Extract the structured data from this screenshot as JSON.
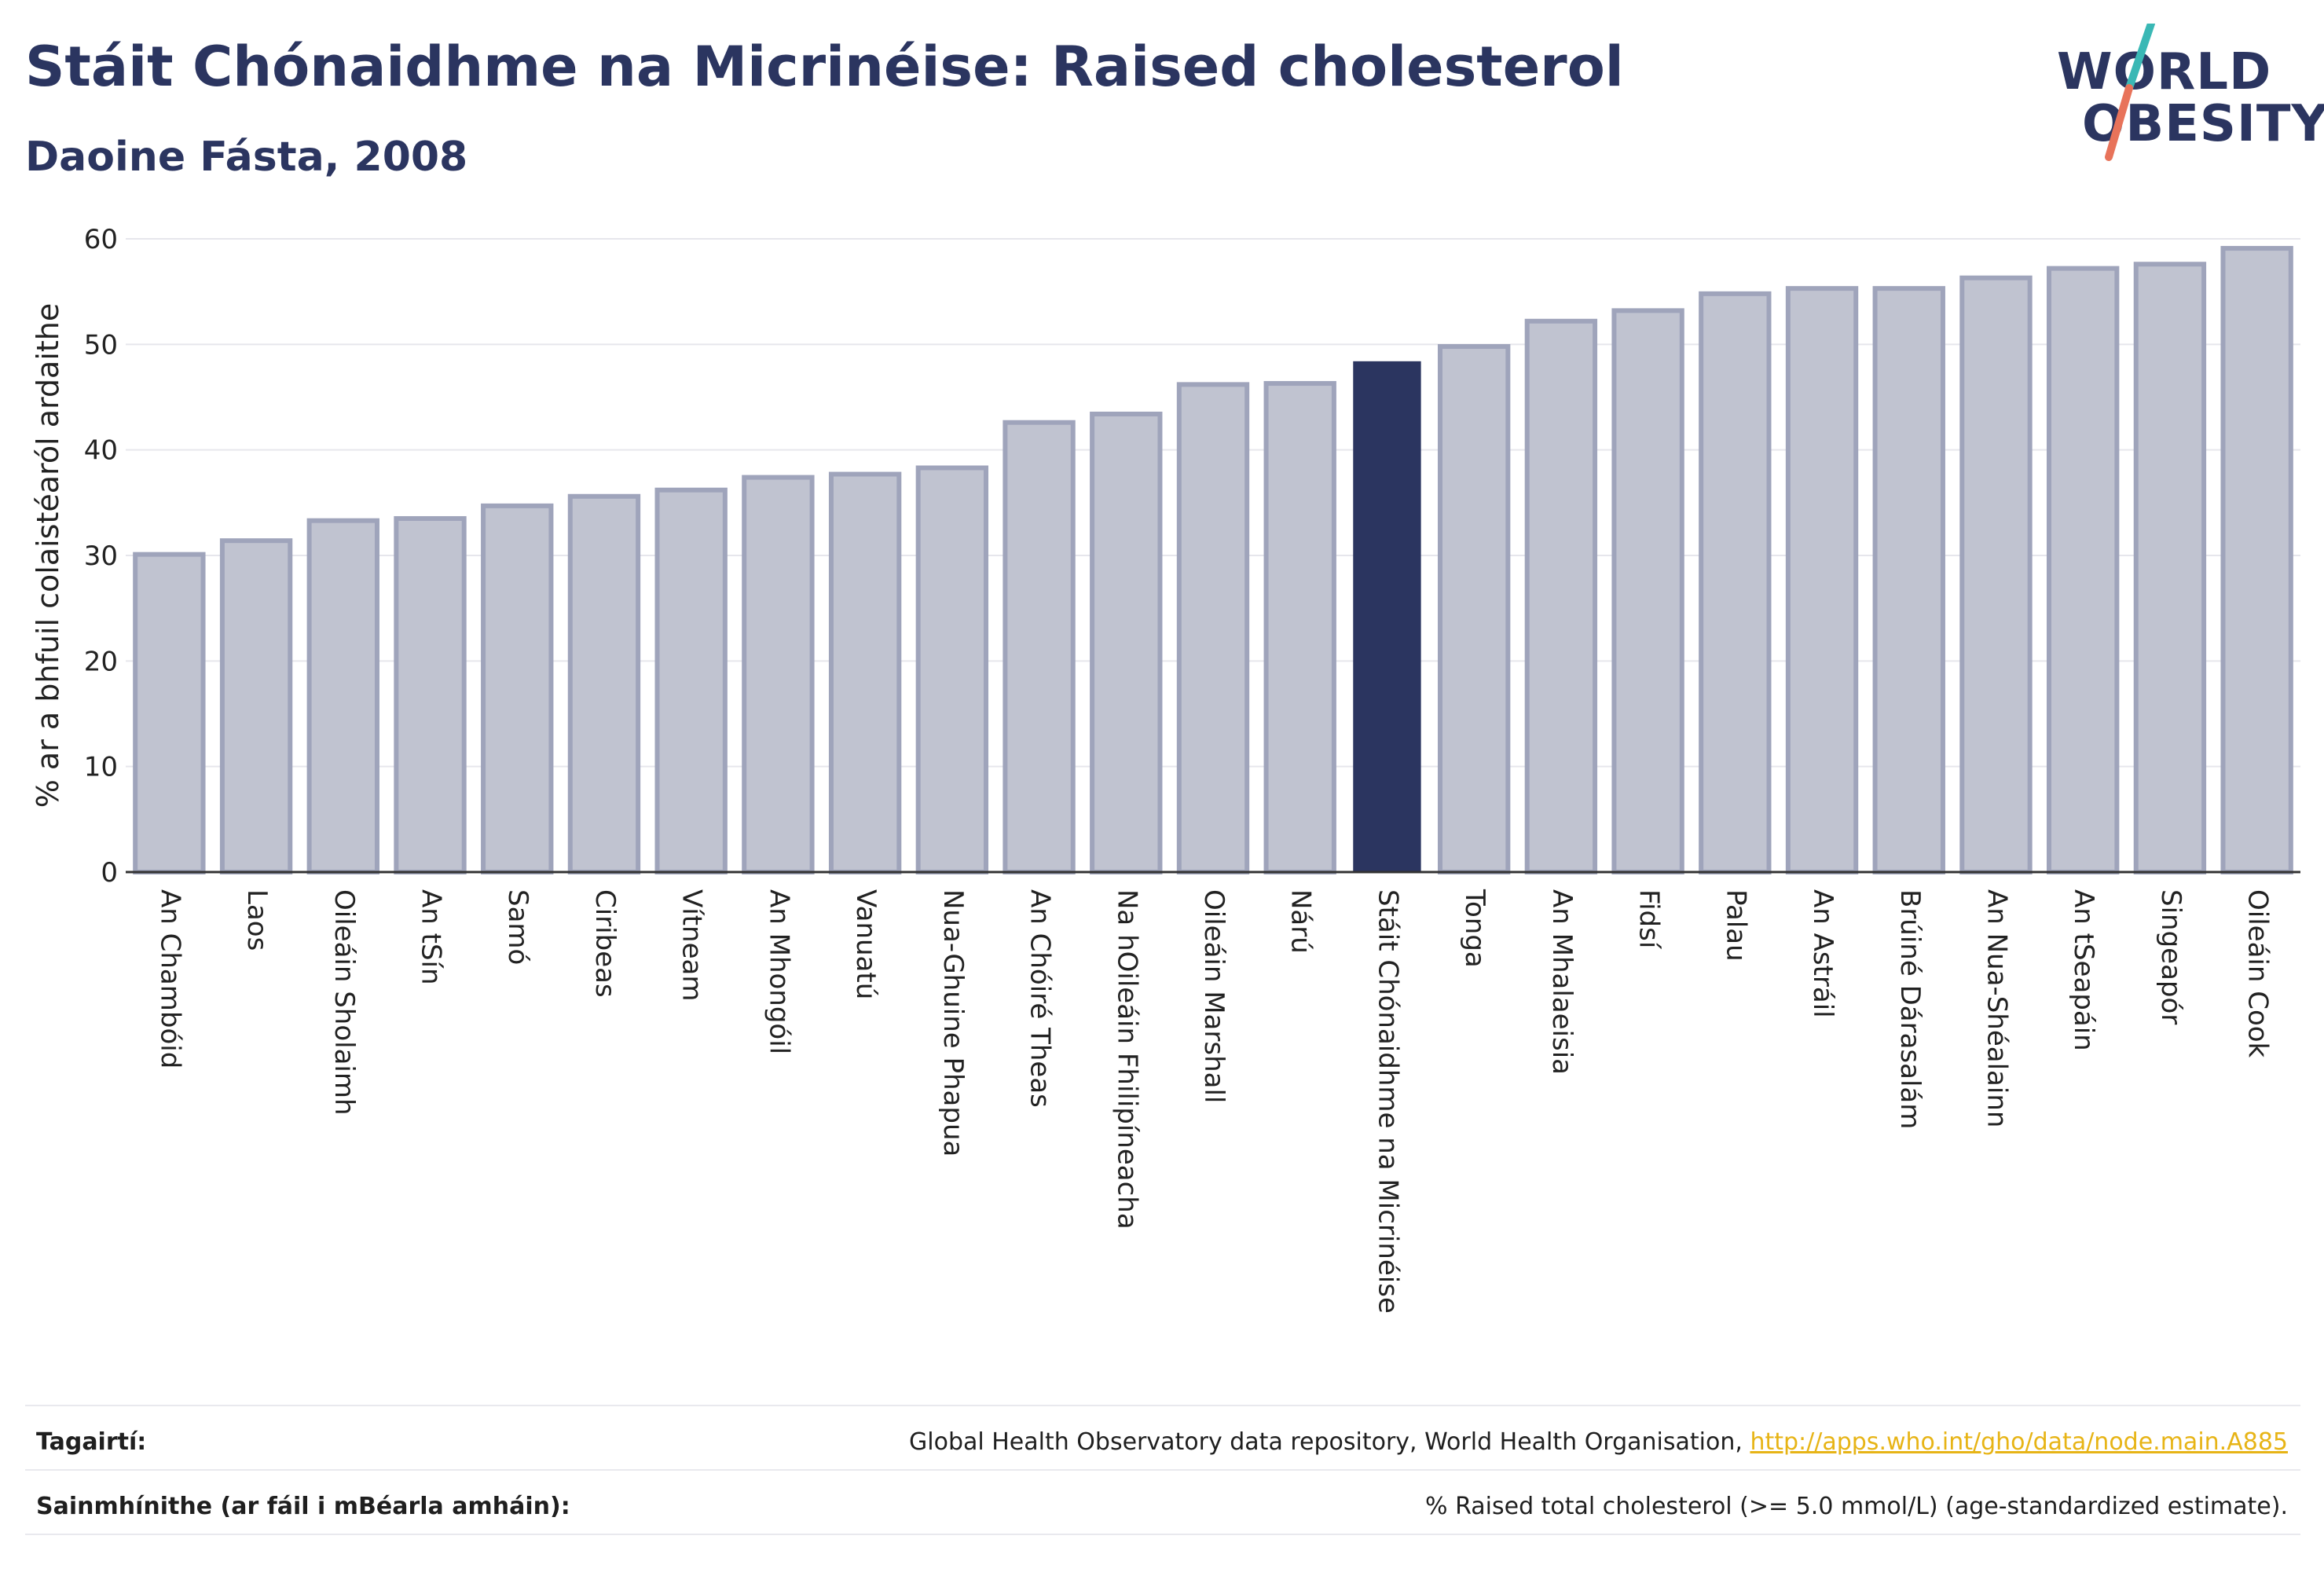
{
  "header": {
    "title": "Stáit Chónaidhme na Micrinéise: Raised cholesterol",
    "subtitle": "Daoine Fásta, 2008"
  },
  "logo": {
    "line1": "WORLD",
    "line2": "OBESITY"
  },
  "colors": {
    "bar_default": "#c0c3d0",
    "bar_default_stroke": "#9fa4bb",
    "bar_highlight": "#2b3560",
    "gridline": "#e6e6ec",
    "axis": "#333333",
    "logo_slash_teal": "#3ab8b5",
    "logo_slash_coral": "#e8735a"
  },
  "chart_data": {
    "type": "bar",
    "ylabel": "% ar a bhfuil colaistéaról ardaithe",
    "ylim": [
      0,
      60
    ],
    "yticks": [
      0,
      10,
      20,
      30,
      40,
      50,
      60
    ],
    "grid": true,
    "highlight": "Stáit Chónaidhme na Micrinéise",
    "categories": [
      "An Chambóid",
      "Laos",
      "Oileáin Sholaimh",
      "An tSín",
      "Samó",
      "Ciribeas",
      "Vítneam",
      "An Mhongóil",
      "Vanuatú",
      "Nua-Ghuine Phapua",
      "An Chóiré Theas",
      "Na hOileáin Fhilipíneacha",
      "Oileáin Marshall",
      "Nárú",
      "Stáit Chónaidhme na Micrinéise",
      "Tonga",
      "An Mhalaeisia",
      "Fidsí",
      "Palau",
      "An Astráil",
      "Brúiné Dárasalám",
      "An Nua-Shéalainn",
      "An tSeapáin",
      "Singeapór",
      "Oileáin Cook"
    ],
    "values": [
      30.1,
      31.4,
      33.3,
      33.5,
      34.7,
      35.6,
      36.2,
      37.4,
      37.7,
      38.3,
      42.6,
      43.4,
      46.2,
      46.3,
      48.4,
      49.8,
      52.2,
      53.2,
      54.8,
      55.3,
      55.3,
      56.3,
      57.2,
      57.6,
      59.1
    ]
  },
  "footer": {
    "references_label": "Tagairtí:",
    "references_text": "Global Health Observatory data repository, World Health Organisation, ",
    "references_link": "http://apps.who.int/gho/data/node.main.A885",
    "definitions_label": "Sainmhínithe (ar fáil i mBéarla amháin):",
    "definitions_text": "% Raised total cholesterol (>= 5.0 mmol/L) (age-standardized estimate)."
  }
}
